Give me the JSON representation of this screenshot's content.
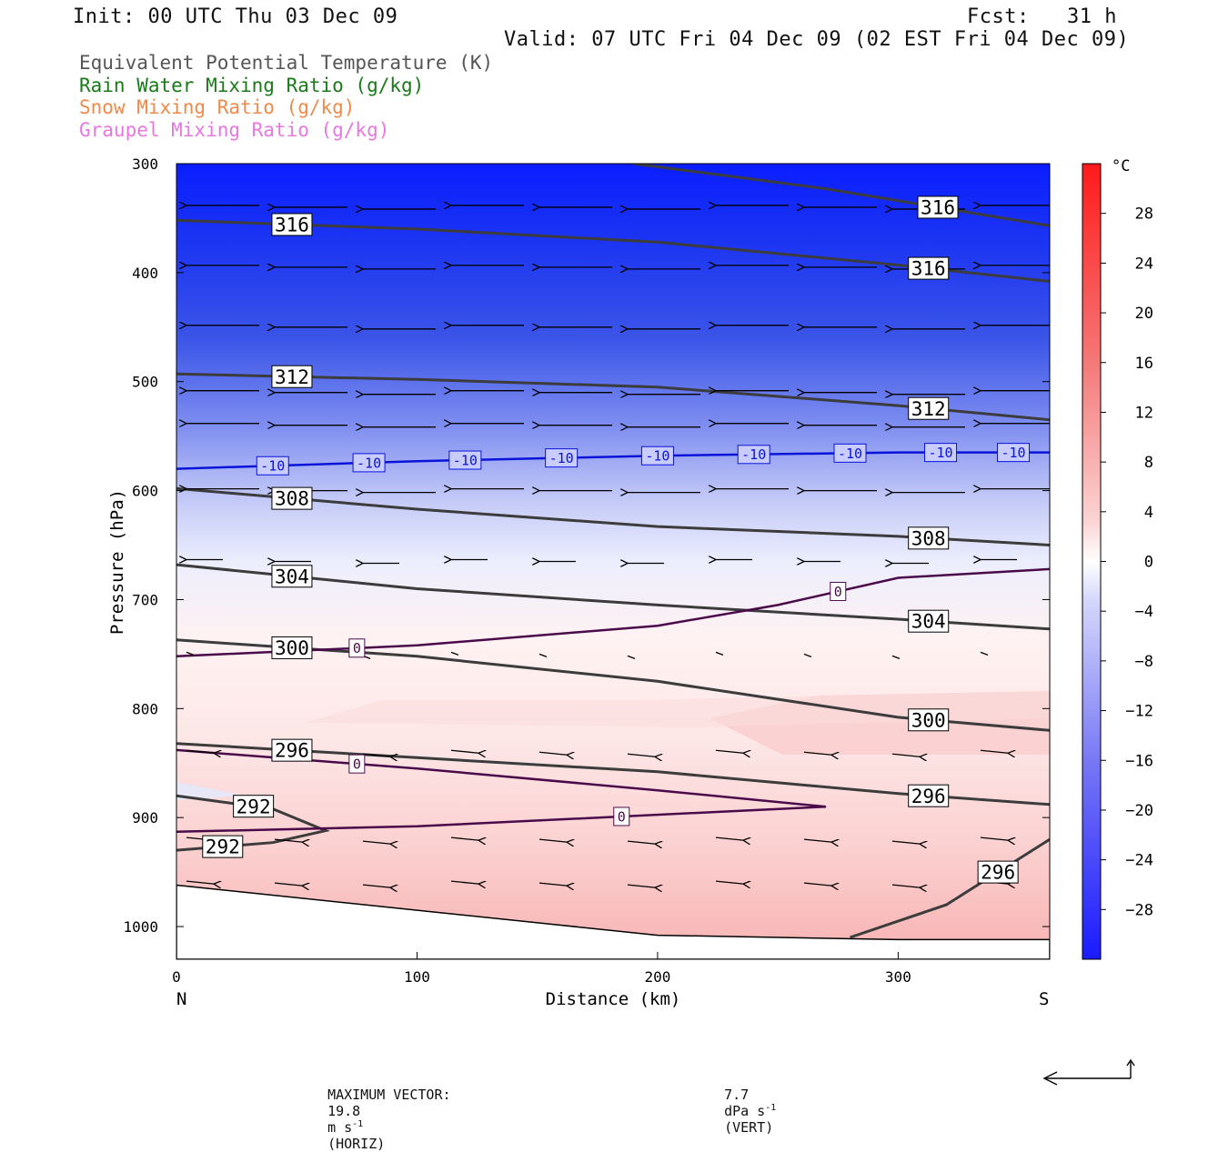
{
  "header": {
    "init": "Init: 00 UTC Thu 03 Dec 09",
    "fcst": "Fcst:   31 h",
    "valid": "Valid: 07 UTC Fri 04 Dec 09 (02 EST Fri 04 Dec 09)"
  },
  "legend": [
    {
      "label": "Equivalent Potential Temperature (K)",
      "color": "#555555"
    },
    {
      "label": "Rain Water Mixing Ratio (g/kg)",
      "color": "#1a7a1a"
    },
    {
      "label": "Snow Mixing Ratio (g/kg)",
      "color": "#f08a4a"
    },
    {
      "label": "Graupel Mixing Ratio (g/kg)",
      "color": "#e878e0"
    }
  ],
  "chart_data": {
    "type": "heatmap",
    "xlabel": "Distance (km)",
    "ylabel": "Pressure (hPa)",
    "x_ticks": [
      0,
      100,
      200,
      300
    ],
    "xlim": [
      0,
      363
    ],
    "y_ticks": [
      300,
      400,
      500,
      600,
      700,
      800,
      900,
      1000
    ],
    "ylim": [
      300,
      1030
    ],
    "y_scale": "linear",
    "x_end_labels": {
      "left": "N",
      "right": "S"
    },
    "colorbar": {
      "unit": "°C",
      "ticks": [
        28,
        24,
        20,
        16,
        12,
        8,
        4,
        0,
        -4,
        -8,
        -12,
        -16,
        -20,
        -24,
        -28
      ],
      "range": [
        -32,
        32
      ]
    },
    "theta_e_contours": [
      {
        "label": "316",
        "points": [
          [
            0,
            352
          ],
          [
            100,
            360
          ],
          [
            200,
            372
          ],
          [
            300,
            393
          ],
          [
            363,
            408
          ]
        ]
      },
      {
        "label": "316",
        "points": [
          [
            190,
            300
          ],
          [
            270,
            323
          ],
          [
            363,
            357
          ]
        ]
      },
      {
        "label": "312",
        "points": [
          [
            0,
            493
          ],
          [
            100,
            498
          ],
          [
            200,
            505
          ],
          [
            300,
            522
          ],
          [
            363,
            535
          ]
        ]
      },
      {
        "label": "308",
        "points": [
          [
            0,
            598
          ],
          [
            100,
            617
          ],
          [
            200,
            633
          ],
          [
            300,
            642
          ],
          [
            363,
            650
          ]
        ]
      },
      {
        "label": "304",
        "points": [
          [
            0,
            668
          ],
          [
            100,
            690
          ],
          [
            200,
            705
          ],
          [
            300,
            718
          ],
          [
            363,
            727
          ]
        ]
      },
      {
        "label": "300",
        "points": [
          [
            0,
            737
          ],
          [
            100,
            752
          ],
          [
            200,
            775
          ],
          [
            300,
            808
          ],
          [
            363,
            820
          ]
        ]
      },
      {
        "label": "296",
        "points": [
          [
            0,
            832
          ],
          [
            100,
            845
          ],
          [
            200,
            858
          ],
          [
            300,
            878
          ],
          [
            363,
            888
          ]
        ]
      },
      {
        "label": "292",
        "points": [
          [
            0,
            930
          ],
          [
            40,
            923
          ],
          [
            62,
            912
          ],
          [
            40,
            892
          ],
          [
            0,
            880
          ]
        ]
      },
      {
        "label": "296",
        "points": [
          [
            280,
            1010
          ],
          [
            320,
            980
          ],
          [
            363,
            920
          ]
        ]
      }
    ],
    "temperature_contours": [
      {
        "label": "-10",
        "points": [
          [
            0,
            580
          ],
          [
            100,
            573
          ],
          [
            200,
            568
          ],
          [
            300,
            565
          ],
          [
            363,
            565
          ]
        ]
      },
      {
        "label": "0",
        "points": [
          [
            0,
            752
          ],
          [
            100,
            742
          ],
          [
            200,
            724
          ],
          [
            250,
            705
          ],
          [
            300,
            680
          ],
          [
            363,
            672
          ]
        ]
      },
      {
        "label": "0",
        "points": [
          [
            0,
            838
          ],
          [
            100,
            855
          ],
          [
            200,
            875
          ],
          [
            270,
            890
          ],
          [
            100,
            908
          ],
          [
            0,
            913
          ]
        ]
      }
    ],
    "terrain_pressure": [
      [
        0,
        962
      ],
      [
        100,
        985
      ],
      [
        200,
        1008
      ],
      [
        300,
        1012
      ],
      [
        363,
        1012
      ]
    ],
    "wind_barb_rows_hpa": [
      340,
      395,
      450,
      510,
      540,
      600,
      665,
      750,
      840,
      920,
      960
    ]
  },
  "footer": {
    "max_vector_label": "MAXIMUM VECTOR:",
    "horiz_value": "19.8",
    "horiz_unit_base": "m s",
    "horiz_unit_exp": "-1",
    "horiz_tag": "(HORIZ)",
    "vert_value": "7.7",
    "vert_unit_base": "dPa s",
    "vert_unit_exp": "-1",
    "vert_tag": "(VERT)"
  }
}
